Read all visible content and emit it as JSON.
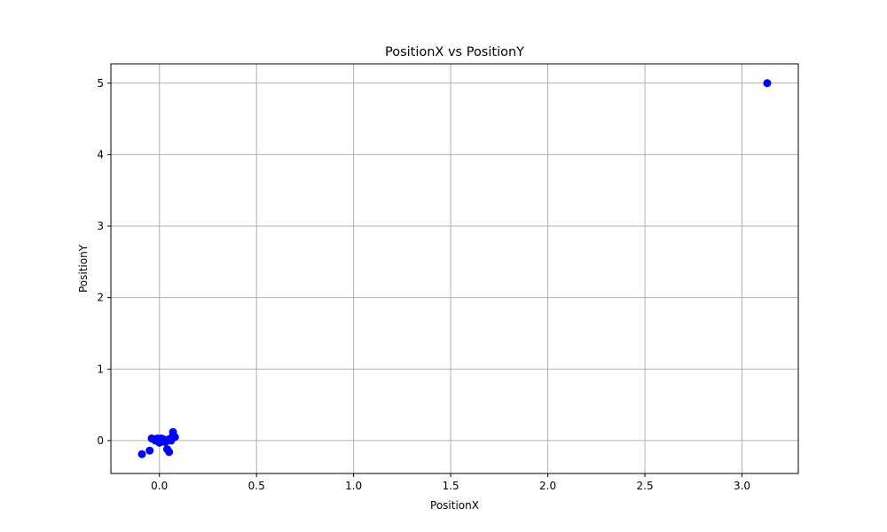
{
  "chart_data": {
    "type": "scatter",
    "title": "PositionX vs PositionY",
    "xlabel": "PositionX",
    "ylabel": "PositionY",
    "xlim": [
      -0.25,
      3.29
    ],
    "ylim": [
      -0.46,
      5.27
    ],
    "xticks": [
      0.0,
      0.5,
      1.0,
      1.5,
      2.0,
      2.5,
      3.0
    ],
    "xtick_labels": [
      "0.0",
      "0.5",
      "1.0",
      "1.5",
      "2.0",
      "2.5",
      "3.0"
    ],
    "yticks": [
      0,
      1,
      2,
      3,
      4,
      5
    ],
    "ytick_labels": [
      "0",
      "1",
      "2",
      "3",
      "4",
      "5"
    ],
    "grid": true,
    "marker_color": "#0000ff",
    "grid_color": "#b0b0b0",
    "series": [
      {
        "x": [
          3.13,
          -0.09,
          -0.05,
          -0.04,
          -0.03,
          -0.02,
          0.0,
          0.01,
          0.02,
          0.03,
          0.04,
          0.04,
          0.05,
          0.05,
          0.06,
          0.07,
          0.07,
          0.08,
          -0.01,
          0.01
        ],
        "y": [
          5.0,
          -0.19,
          -0.14,
          0.03,
          0.02,
          0.0,
          -0.03,
          0.03,
          0.02,
          -0.02,
          0.0,
          -0.12,
          -0.16,
          0.02,
          0.0,
          0.08,
          0.12,
          0.05,
          0.03,
          0.01
        ]
      }
    ]
  }
}
